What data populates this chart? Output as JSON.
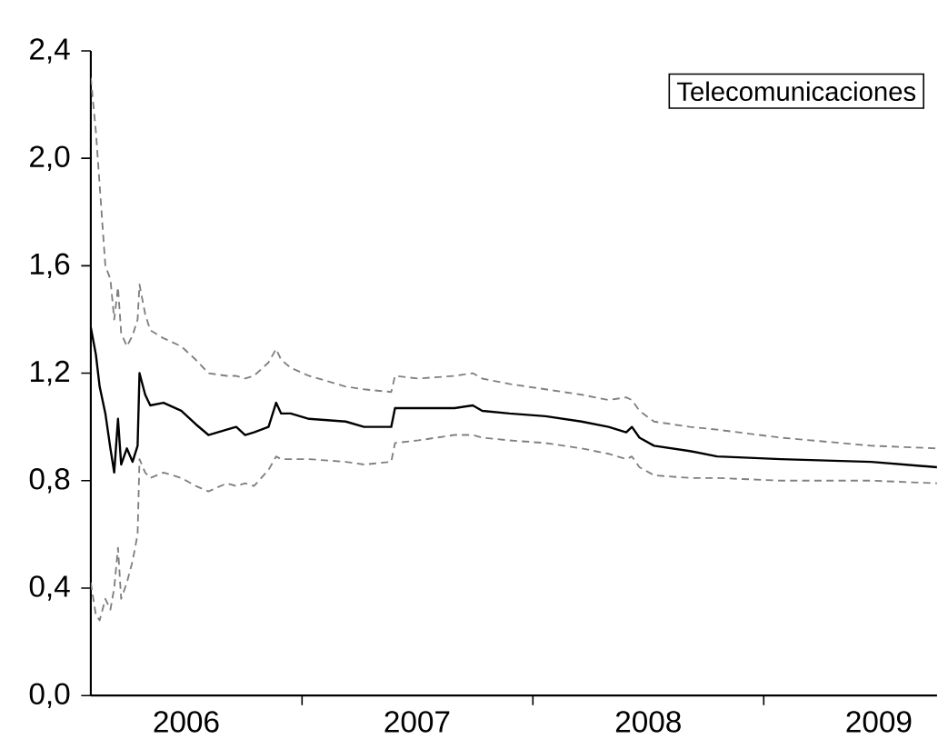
{
  "chart_data": {
    "type": "line",
    "title": "Telecomunicaciones",
    "xlim": [
      "2006-02-01",
      "2009-10-02"
    ],
    "xticks": [
      {
        "value": "2006-07-02",
        "label": "2006"
      },
      {
        "value": "2007-01-01",
        "label": null
      },
      {
        "value": "2007-07-02",
        "label": "2007"
      },
      {
        "value": "2008-01-01",
        "label": null
      },
      {
        "value": "2008-07-02",
        "label": "2008"
      },
      {
        "value": "2009-01-01",
        "label": null
      },
      {
        "value": "2009-07-02",
        "label": "2009"
      }
    ],
    "ylim": [
      0,
      2.4
    ],
    "yticks": [
      {
        "value": 0,
        "label": "0,0"
      },
      {
        "value": 0.4,
        "label": "0,4"
      },
      {
        "value": 0.8,
        "label": "0,8"
      },
      {
        "value": 1.2,
        "label": "1,2"
      },
      {
        "value": 1.6,
        "label": "1,6"
      },
      {
        "value": 2.0,
        "label": "2,0"
      },
      {
        "value": 2.4,
        "label": "2,4"
      }
    ],
    "x": [
      "2006-02-01",
      "2006-02-09",
      "2006-02-15",
      "2006-02-24",
      "2006-03-04",
      "2006-03-10",
      "2006-03-16",
      "2006-03-21",
      "2006-03-30",
      "2006-04-08",
      "2006-04-16",
      "2006-04-19",
      "2006-04-28",
      "2006-05-06",
      "2006-05-27",
      "2006-06-24",
      "2006-07-17",
      "2006-08-06",
      "2006-09-04",
      "2006-09-19",
      "2006-10-03",
      "2006-10-17",
      "2006-11-09",
      "2006-11-21",
      "2006-11-29",
      "2006-12-14",
      "2007-01-12",
      "2007-03-11",
      "2007-04-09",
      "2007-05-22",
      "2007-05-28",
      "2007-07-04",
      "2007-08-30",
      "2007-09-28",
      "2007-10-13",
      "2007-11-25",
      "2008-01-21",
      "2008-03-18",
      "2008-04-30",
      "2008-05-28",
      "2008-06-06",
      "2008-06-18",
      "2008-07-11",
      "2008-09-06",
      "2008-10-19",
      "2009-01-28",
      "2009-06-20",
      "2009-10-02"
    ],
    "grid": false,
    "series": [
      {
        "color": "#000000",
        "line_style": "solid",
        "values": [
          1.37,
          1.27,
          1.15,
          1.05,
          0.92,
          0.83,
          1.03,
          0.86,
          0.92,
          0.87,
          0.93,
          1.2,
          1.12,
          1.08,
          1.09,
          1.06,
          1.01,
          0.97,
          0.99,
          1.0,
          0.97,
          0.98,
          1.0,
          1.09,
          1.05,
          1.05,
          1.03,
          1.02,
          1.0,
          1.0,
          1.07,
          1.07,
          1.07,
          1.08,
          1.06,
          1.05,
          1.04,
          1.02,
          1.0,
          0.98,
          1.0,
          0.96,
          0.93,
          0.91,
          0.89,
          0.88,
          0.87,
          0.85
        ]
      },
      {
        "color": "#808080",
        "line_style": "dashed",
        "values": [
          2.3,
          2.1,
          1.9,
          1.6,
          1.55,
          1.4,
          1.52,
          1.35,
          1.3,
          1.34,
          1.4,
          1.53,
          1.42,
          1.36,
          1.33,
          1.3,
          1.25,
          1.2,
          1.19,
          1.19,
          1.18,
          1.19,
          1.24,
          1.29,
          1.25,
          1.22,
          1.19,
          1.15,
          1.14,
          1.13,
          1.19,
          1.18,
          1.19,
          1.2,
          1.18,
          1.16,
          1.14,
          1.12,
          1.1,
          1.11,
          1.1,
          1.06,
          1.02,
          1.0,
          0.99,
          0.96,
          0.93,
          0.92
        ]
      },
      {
        "color": "#808080",
        "line_style": "dashed",
        "values": [
          0.42,
          0.3,
          0.28,
          0.36,
          0.32,
          0.4,
          0.55,
          0.36,
          0.42,
          0.5,
          0.6,
          0.88,
          0.83,
          0.81,
          0.83,
          0.81,
          0.78,
          0.76,
          0.79,
          0.78,
          0.79,
          0.78,
          0.84,
          0.89,
          0.88,
          0.88,
          0.88,
          0.87,
          0.86,
          0.87,
          0.94,
          0.95,
          0.97,
          0.97,
          0.96,
          0.95,
          0.94,
          0.92,
          0.9,
          0.88,
          0.89,
          0.85,
          0.82,
          0.81,
          0.81,
          0.8,
          0.8,
          0.79
        ]
      }
    ]
  }
}
